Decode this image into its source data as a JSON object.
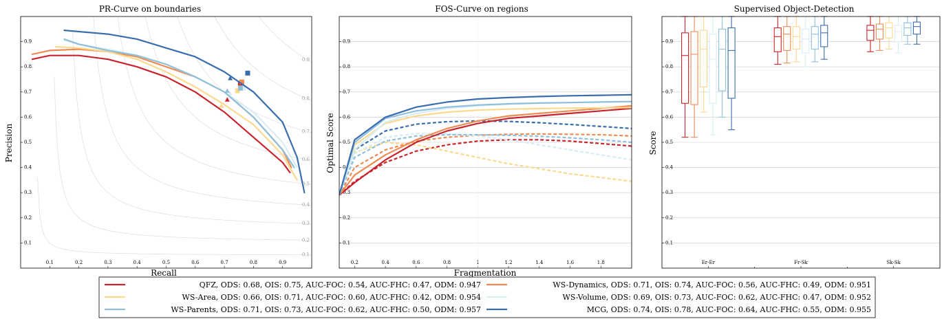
{
  "colors": {
    "QFZ": "#c8232c",
    "WS-Dynamics": "#ef8a52",
    "WS-Area": "#fbd98e",
    "WS-Volume": "#d8edf3",
    "WS-Parents": "#8fbfdb",
    "MCG": "#3a6dae"
  },
  "chart_data": [
    {
      "type": "line",
      "title": "PR-Curve on boundaries",
      "xlabel": "Recall",
      "ylabel": "Precision",
      "xlim": [
        0,
        1
      ],
      "ylim": [
        0,
        1
      ],
      "x_ticks": [
        "0.1",
        "0.2",
        "0.3",
        "0.4",
        "0.5",
        "0.6",
        "0.7",
        "0.8",
        "0.9"
      ],
      "y_ticks": [
        "0.1",
        "0.2",
        "0.3",
        "0.4",
        "0.5",
        "0.6",
        "0.7",
        "0.8",
        "0.9"
      ],
      "iso_f_labels": [
        "0.1",
        "0.2",
        "0.3",
        "0.4",
        "0.5",
        "0.6",
        "0.7",
        "0.8",
        "0.9"
      ],
      "grid": false,
      "series": [
        {
          "name": "QFZ",
          "color_key": "QFZ",
          "x": [
            0.04,
            0.1,
            0.2,
            0.3,
            0.4,
            0.5,
            0.6,
            0.7,
            0.8,
            0.9,
            0.925
          ],
          "y": [
            0.83,
            0.845,
            0.845,
            0.83,
            0.8,
            0.76,
            0.7,
            0.62,
            0.52,
            0.42,
            0.38
          ],
          "ods": [
            0.71,
            0.67
          ],
          "ois": [
            0.755,
            0.735
          ]
        },
        {
          "name": "WS-Dynamics",
          "color_key": "WS-Dynamics",
          "x": [
            0.04,
            0.1,
            0.2,
            0.3,
            0.4,
            0.5,
            0.6,
            0.7,
            0.8,
            0.9,
            0.93
          ],
          "y": [
            0.85,
            0.865,
            0.87,
            0.86,
            0.84,
            0.8,
            0.76,
            0.7,
            0.6,
            0.47,
            0.4
          ],
          "ods": [
            0.71,
            0.705
          ],
          "ois": [
            0.76,
            0.74
          ]
        },
        {
          "name": "WS-Area",
          "color_key": "WS-Area",
          "x": [
            0.12,
            0.2,
            0.3,
            0.4,
            0.5,
            0.6,
            0.7,
            0.8,
            0.9,
            0.95
          ],
          "y": [
            0.88,
            0.875,
            0.86,
            0.83,
            0.78,
            0.72,
            0.65,
            0.57,
            0.45,
            0.35
          ],
          "ods": [
            0.69,
            0.645
          ],
          "ois": [
            0.745,
            0.705
          ]
        },
        {
          "name": "WS-Volume",
          "color_key": "WS-Volume",
          "x": [
            0.15,
            0.2,
            0.3,
            0.4,
            0.5,
            0.6,
            0.7,
            0.8,
            0.9,
            0.95
          ],
          "y": [
            0.905,
            0.89,
            0.87,
            0.845,
            0.81,
            0.76,
            0.7,
            0.62,
            0.5,
            0.4
          ],
          "ods": [
            0.72,
            0.695
          ],
          "ois": [
            0.765,
            0.715
          ]
        },
        {
          "name": "WS-Parents",
          "color_key": "WS-Parents",
          "x": [
            0.15,
            0.2,
            0.3,
            0.4,
            0.5,
            0.6,
            0.7,
            0.8,
            0.9,
            0.94
          ],
          "y": [
            0.91,
            0.89,
            0.865,
            0.845,
            0.81,
            0.76,
            0.7,
            0.6,
            0.47,
            0.4
          ],
          "ods": [
            0.71,
            0.705
          ],
          "ois": [
            0.755,
            0.715
          ]
        },
        {
          "name": "MCG",
          "color_key": "MCG",
          "x": [
            0.15,
            0.3,
            0.4,
            0.5,
            0.6,
            0.7,
            0.8,
            0.9,
            0.95,
            0.975
          ],
          "y": [
            0.945,
            0.93,
            0.91,
            0.875,
            0.84,
            0.78,
            0.7,
            0.58,
            0.44,
            0.3
          ],
          "ods": [
            0.72,
            0.755
          ],
          "ois": [
            0.78,
            0.775
          ]
        }
      ]
    },
    {
      "type": "line",
      "title": "FOS-Curve on regions",
      "xlabel": "Fragmentation",
      "ylabel": "Optimal Score",
      "xlim": [
        0.1,
        2.0
      ],
      "ylim": [
        0,
        1
      ],
      "x_ticks": [
        "0.2",
        "0.4",
        "0.6",
        "0.8",
        "1",
        "1.2",
        "1.4",
        "1.6",
        "1.8"
      ],
      "y_ticks": [
        "0.1",
        "0.2",
        "0.3",
        "0.4",
        "0.5",
        "0.6",
        "0.7",
        "0.8",
        "0.9"
      ],
      "grid": true,
      "series": [
        {
          "name": "QFZ",
          "color_key": "QFZ",
          "dash": false,
          "x": [
            0.1,
            0.2,
            0.4,
            0.6,
            0.8,
            1.0,
            1.2,
            1.4,
            1.6,
            1.8,
            2.0
          ],
          "y": [
            0.29,
            0.34,
            0.43,
            0.5,
            0.545,
            0.575,
            0.595,
            0.605,
            0.615,
            0.625,
            0.635
          ]
        },
        {
          "name": "QFZ",
          "color_key": "QFZ",
          "dash": true,
          "x": [
            0.1,
            0.2,
            0.4,
            0.6,
            0.8,
            1.0,
            1.2,
            1.4,
            1.6,
            1.8,
            2.0
          ],
          "y": [
            0.29,
            0.345,
            0.42,
            0.465,
            0.49,
            0.505,
            0.51,
            0.51,
            0.505,
            0.495,
            0.485
          ]
        },
        {
          "name": "WS-Dynamics",
          "color_key": "WS-Dynamics",
          "dash": false,
          "x": [
            0.1,
            0.2,
            0.4,
            0.6,
            0.8,
            1.0,
            1.2,
            1.4,
            1.6,
            1.8,
            2.0
          ],
          "y": [
            0.29,
            0.37,
            0.45,
            0.51,
            0.555,
            0.585,
            0.605,
            0.615,
            0.625,
            0.635,
            0.645
          ]
        },
        {
          "name": "WS-Dynamics",
          "color_key": "WS-Dynamics",
          "dash": true,
          "x": [
            0.1,
            0.2,
            0.4,
            0.6,
            0.8,
            1.0,
            1.2,
            1.4,
            1.6,
            1.8,
            2.0
          ],
          "y": [
            0.29,
            0.4,
            0.47,
            0.505,
            0.52,
            0.528,
            0.532,
            0.533,
            0.532,
            0.53,
            0.525
          ]
        },
        {
          "name": "WS-Area",
          "color_key": "WS-Area",
          "dash": false,
          "x": [
            0.1,
            0.2,
            0.4,
            0.6,
            0.8,
            1.0,
            1.2,
            1.4,
            1.6,
            1.8,
            2.0
          ],
          "y": [
            0.29,
            0.49,
            0.575,
            0.605,
            0.62,
            0.628,
            0.632,
            0.634,
            0.636,
            0.637,
            0.638
          ]
        },
        {
          "name": "WS-Area",
          "color_key": "WS-Area",
          "dash": true,
          "x": [
            0.1,
            0.2,
            0.4,
            0.6,
            0.8,
            1.0,
            1.2,
            1.4,
            1.6,
            1.8,
            2.0
          ],
          "y": [
            0.29,
            0.46,
            0.5,
            0.49,
            0.465,
            0.44,
            0.415,
            0.395,
            0.375,
            0.36,
            0.345
          ]
        },
        {
          "name": "WS-Volume",
          "color_key": "WS-Volume",
          "dash": false,
          "x": [
            0.1,
            0.2,
            0.4,
            0.6,
            0.8,
            1.0,
            1.2,
            1.4,
            1.6,
            1.8,
            2.0
          ],
          "y": [
            0.29,
            0.47,
            0.58,
            0.615,
            0.635,
            0.645,
            0.652,
            0.656,
            0.658,
            0.66,
            0.662
          ]
        },
        {
          "name": "WS-Volume",
          "color_key": "WS-Volume",
          "dash": true,
          "x": [
            0.1,
            0.2,
            0.4,
            0.6,
            0.8,
            1.0,
            1.2,
            1.4,
            1.6,
            1.8,
            2.0
          ],
          "y": [
            0.29,
            0.455,
            0.52,
            0.535,
            0.535,
            0.525,
            0.51,
            0.49,
            0.47,
            0.45,
            0.43
          ]
        },
        {
          "name": "WS-Parents",
          "color_key": "WS-Parents",
          "dash": false,
          "x": [
            0.1,
            0.2,
            0.4,
            0.6,
            0.8,
            1.0,
            1.2,
            1.4,
            1.6,
            1.8,
            2.0
          ],
          "y": [
            0.29,
            0.5,
            0.595,
            0.625,
            0.64,
            0.648,
            0.653,
            0.656,
            0.658,
            0.66,
            0.662
          ]
        },
        {
          "name": "WS-Parents",
          "color_key": "WS-Parents",
          "dash": true,
          "x": [
            0.1,
            0.2,
            0.4,
            0.6,
            0.8,
            1.0,
            1.2,
            1.4,
            1.6,
            1.8,
            2.0
          ],
          "y": [
            0.29,
            0.44,
            0.505,
            0.525,
            0.53,
            0.53,
            0.528,
            0.524,
            0.518,
            0.51,
            0.5
          ]
        },
        {
          "name": "MCG",
          "color_key": "MCG",
          "dash": false,
          "x": [
            0.1,
            0.2,
            0.4,
            0.6,
            0.8,
            1.0,
            1.2,
            1.4,
            1.6,
            1.8,
            2.0
          ],
          "y": [
            0.29,
            0.51,
            0.6,
            0.64,
            0.66,
            0.672,
            0.678,
            0.682,
            0.685,
            0.687,
            0.689
          ]
        },
        {
          "name": "MCG",
          "color_key": "MCG",
          "dash": true,
          "x": [
            0.1,
            0.2,
            0.4,
            0.6,
            0.8,
            1.0,
            1.2,
            1.4,
            1.6,
            1.8,
            2.0
          ],
          "y": [
            0.29,
            0.47,
            0.545,
            0.572,
            0.582,
            0.585,
            0.583,
            0.578,
            0.571,
            0.563,
            0.555
          ]
        }
      ]
    },
    {
      "type": "box",
      "title": "Supervised Object-Detection",
      "xlabel": "",
      "ylabel": "Score",
      "ylim": [
        0,
        1
      ],
      "y_ticks": [
        "0.1",
        "0.2",
        "0.3",
        "0.4",
        "0.5",
        "0.6",
        "0.7",
        "0.8",
        "0.9"
      ],
      "categories": [
        "Er-Er",
        "Fr-Sk",
        "Sk-Sk"
      ],
      "grid": true,
      "series": [
        {
          "name": "QFZ",
          "color_key": "QFZ",
          "boxes": [
            [
              0.52,
              0.655,
              0.845,
              0.935,
              1.0
            ],
            [
              0.81,
              0.86,
              0.92,
              0.955,
              1.0
            ],
            [
              0.86,
              0.905,
              0.945,
              0.965,
              1.0
            ]
          ]
        },
        {
          "name": "WS-Dynamics",
          "color_key": "WS-Dynamics",
          "boxes": [
            [
              0.52,
              0.65,
              0.85,
              0.94,
              1.0
            ],
            [
              0.815,
              0.865,
              0.93,
              0.96,
              1.0
            ],
            [
              0.865,
              0.91,
              0.95,
              0.97,
              1.0
            ]
          ]
        },
        {
          "name": "WS-Area",
          "color_key": "WS-Area",
          "boxes": [
            [
              0.62,
              0.72,
              0.87,
              0.945,
              1.0
            ],
            [
              0.82,
              0.87,
              0.92,
              0.96,
              1.0
            ],
            [
              0.87,
              0.915,
              0.955,
              0.975,
              1.0
            ]
          ]
        },
        {
          "name": "WS-Volume",
          "color_key": "WS-Volume",
          "boxes": [
            [
              0.53,
              0.655,
              0.83,
              0.93,
              1.0
            ],
            [
              0.8,
              0.855,
              0.91,
              0.95,
              1.0
            ],
            [
              0.855,
              0.9,
              0.94,
              0.965,
              1.0
            ]
          ]
        },
        {
          "name": "WS-Parents",
          "color_key": "WS-Parents",
          "boxes": [
            [
              0.6,
              0.705,
              0.87,
              0.95,
              1.0
            ],
            [
              0.82,
              0.87,
              0.93,
              0.96,
              1.0
            ],
            [
              0.89,
              0.925,
              0.955,
              0.975,
              1.0
            ]
          ]
        },
        {
          "name": "MCG",
          "color_key": "MCG",
          "boxes": [
            [
              0.55,
              0.675,
              0.865,
              0.955,
              1.0
            ],
            [
              0.83,
              0.88,
              0.935,
              0.965,
              1.0
            ],
            [
              0.89,
              0.93,
              0.96,
              0.978,
              1.0
            ]
          ]
        }
      ]
    }
  ],
  "legend": {
    "entries": [
      {
        "text": "QFZ, ODS: 0.68, OIS: 0.75, AUC-FOC: 0.54, AUC-FHC: 0.47, ODM: 0.947",
        "color_key": "QFZ"
      },
      {
        "text": "WS-Dynamics, ODS: 0.71, OIS: 0.74, AUC-FOC: 0.56, AUC-FHC: 0.49, ODM: 0.951",
        "color_key": "WS-Dynamics"
      },
      {
        "text": "WS-Area, ODS: 0.66, OIS: 0.71, AUC-FOC: 0.60, AUC-FHC: 0.42, ODM: 0.954",
        "color_key": "WS-Area"
      },
      {
        "text": "WS-Volume, ODS: 0.69, OIS: 0.73, AUC-FOC: 0.62, AUC-FHC: 0.47, ODM: 0.952",
        "color_key": "WS-Volume"
      },
      {
        "text": "WS-Parents, ODS: 0.71, OIS: 0.73, AUC-FOC: 0.62, AUC-FHC: 0.50, ODM: 0.957",
        "color_key": "WS-Parents"
      },
      {
        "text": "MCG, ODS: 0.74, OIS: 0.78, AUC-FOC: 0.64, AUC-FHC: 0.55, ODM: 0.955",
        "color_key": "MCG"
      }
    ]
  }
}
